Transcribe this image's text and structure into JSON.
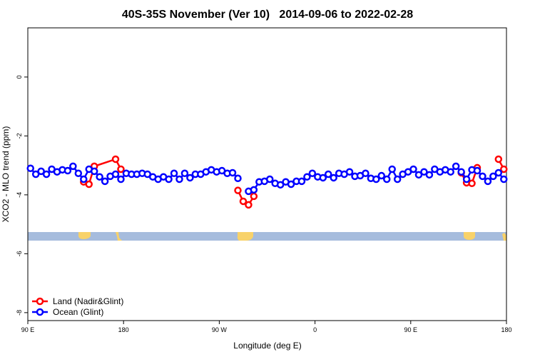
{
  "chart_data": {
    "type": "line",
    "title": "40S-35S November (Ver 10)   2014-09-06 to 2022-02-28",
    "x_label": "Longitude (deg E)",
    "y_label": "XCO2 - MLO trend (ppm)",
    "xlim": [
      90,
      540
    ],
    "ylim": [
      -8.27,
      1.67
    ],
    "xticks": [
      {
        "value": 90,
        "label": "90 E"
      },
      180,
      {
        "value": 270,
        "label": "90 W"
      },
      {
        "value": 360,
        "label": "0"
      },
      {
        "value": 450,
        "label": "90 E"
      },
      {
        "value": 540,
        "label": "180"
      }
    ],
    "yticks": [
      0,
      -2,
      -4,
      -6,
      -8
    ],
    "legend": "bottom-left",
    "series": [
      {
        "name": "Land (Nadir&Glint)",
        "color": "#ff0000",
        "x": [
          142.5,
          147.5,
          152.5,
          172.5,
          177.5,
          null,
          287.5,
          292.5,
          297.5,
          302.5,
          null,
          497.5,
          502.5,
          507.5,
          512.5,
          null,
          532.5,
          537.5
        ],
        "values": [
          -3.56,
          -3.64,
          -3.03,
          -2.79,
          -3.13,
          null,
          -3.85,
          -4.22,
          -4.34,
          -4.05,
          null,
          -3.25,
          -3.59,
          -3.61,
          -3.08,
          null,
          -2.79,
          -3.13
        ]
      },
      {
        "name": "Ocean (Glint)",
        "color": "#0000ff",
        "x": [
          92.5,
          97.5,
          102.5,
          107.5,
          112.5,
          117.5,
          122.5,
          127.5,
          132.5,
          137.5,
          142.5,
          147.5,
          152.5,
          157.5,
          162.5,
          167.5,
          172.5,
          177.5,
          182.5,
          187.5,
          192.5,
          197.5,
          202.5,
          207.5,
          212.5,
          217.5,
          222.5,
          227.5,
          232.5,
          237.5,
          242.5,
          247.5,
          252.5,
          257.5,
          262.5,
          267.5,
          272.5,
          277.5,
          282.5,
          287.5,
          292.5,
          297.5,
          302.5,
          307.5,
          312.5,
          317.5,
          322.5,
          327.5,
          332.5,
          337.5,
          342.5,
          347.5,
          352.5,
          357.5,
          362.5,
          367.5,
          372.5,
          377.5,
          382.5,
          387.5,
          392.5,
          397.5,
          402.5,
          407.5,
          412.5,
          417.5,
          422.5,
          427.5,
          432.5,
          437.5,
          442.5,
          447.5,
          452.5,
          457.5,
          462.5,
          467.5,
          472.5,
          477.5,
          482.5,
          487.5,
          492.5,
          497.5,
          502.5,
          507.5,
          512.5,
          517.5,
          522.5,
          527.5,
          532.5,
          537.5
        ],
        "values": [
          -3.1,
          -3.3,
          -3.2,
          -3.3,
          -3.13,
          -3.22,
          -3.15,
          -3.18,
          -3.03,
          -3.27,
          -3.47,
          -3.13,
          -3.2,
          -3.39,
          -3.54,
          -3.37,
          -3.3,
          -3.47,
          -3.27,
          -3.3,
          -3.3,
          -3.27,
          -3.3,
          -3.39,
          -3.47,
          -3.39,
          -3.47,
          -3.27,
          -3.47,
          -3.27,
          -3.42,
          -3.3,
          -3.3,
          -3.22,
          -3.15,
          -3.22,
          -3.18,
          -3.27,
          -3.25,
          -3.44,
          null,
          -3.88,
          -3.83,
          -3.56,
          -3.54,
          -3.47,
          -3.61,
          -3.66,
          -3.56,
          -3.64,
          -3.54,
          -3.54,
          -3.39,
          -3.27,
          -3.39,
          -3.42,
          -3.3,
          -3.42,
          -3.27,
          -3.3,
          -3.22,
          -3.37,
          -3.35,
          -3.27,
          -3.44,
          -3.47,
          -3.35,
          -3.47,
          -3.13,
          -3.47,
          -3.3,
          -3.22,
          -3.13,
          -3.32,
          -3.22,
          -3.32,
          -3.13,
          -3.22,
          -3.15,
          -3.22,
          -3.03,
          -3.22,
          -3.47,
          -3.15,
          -3.18,
          -3.37,
          -3.54,
          -3.37,
          -3.25,
          -3.47
        ]
      }
    ]
  }
}
